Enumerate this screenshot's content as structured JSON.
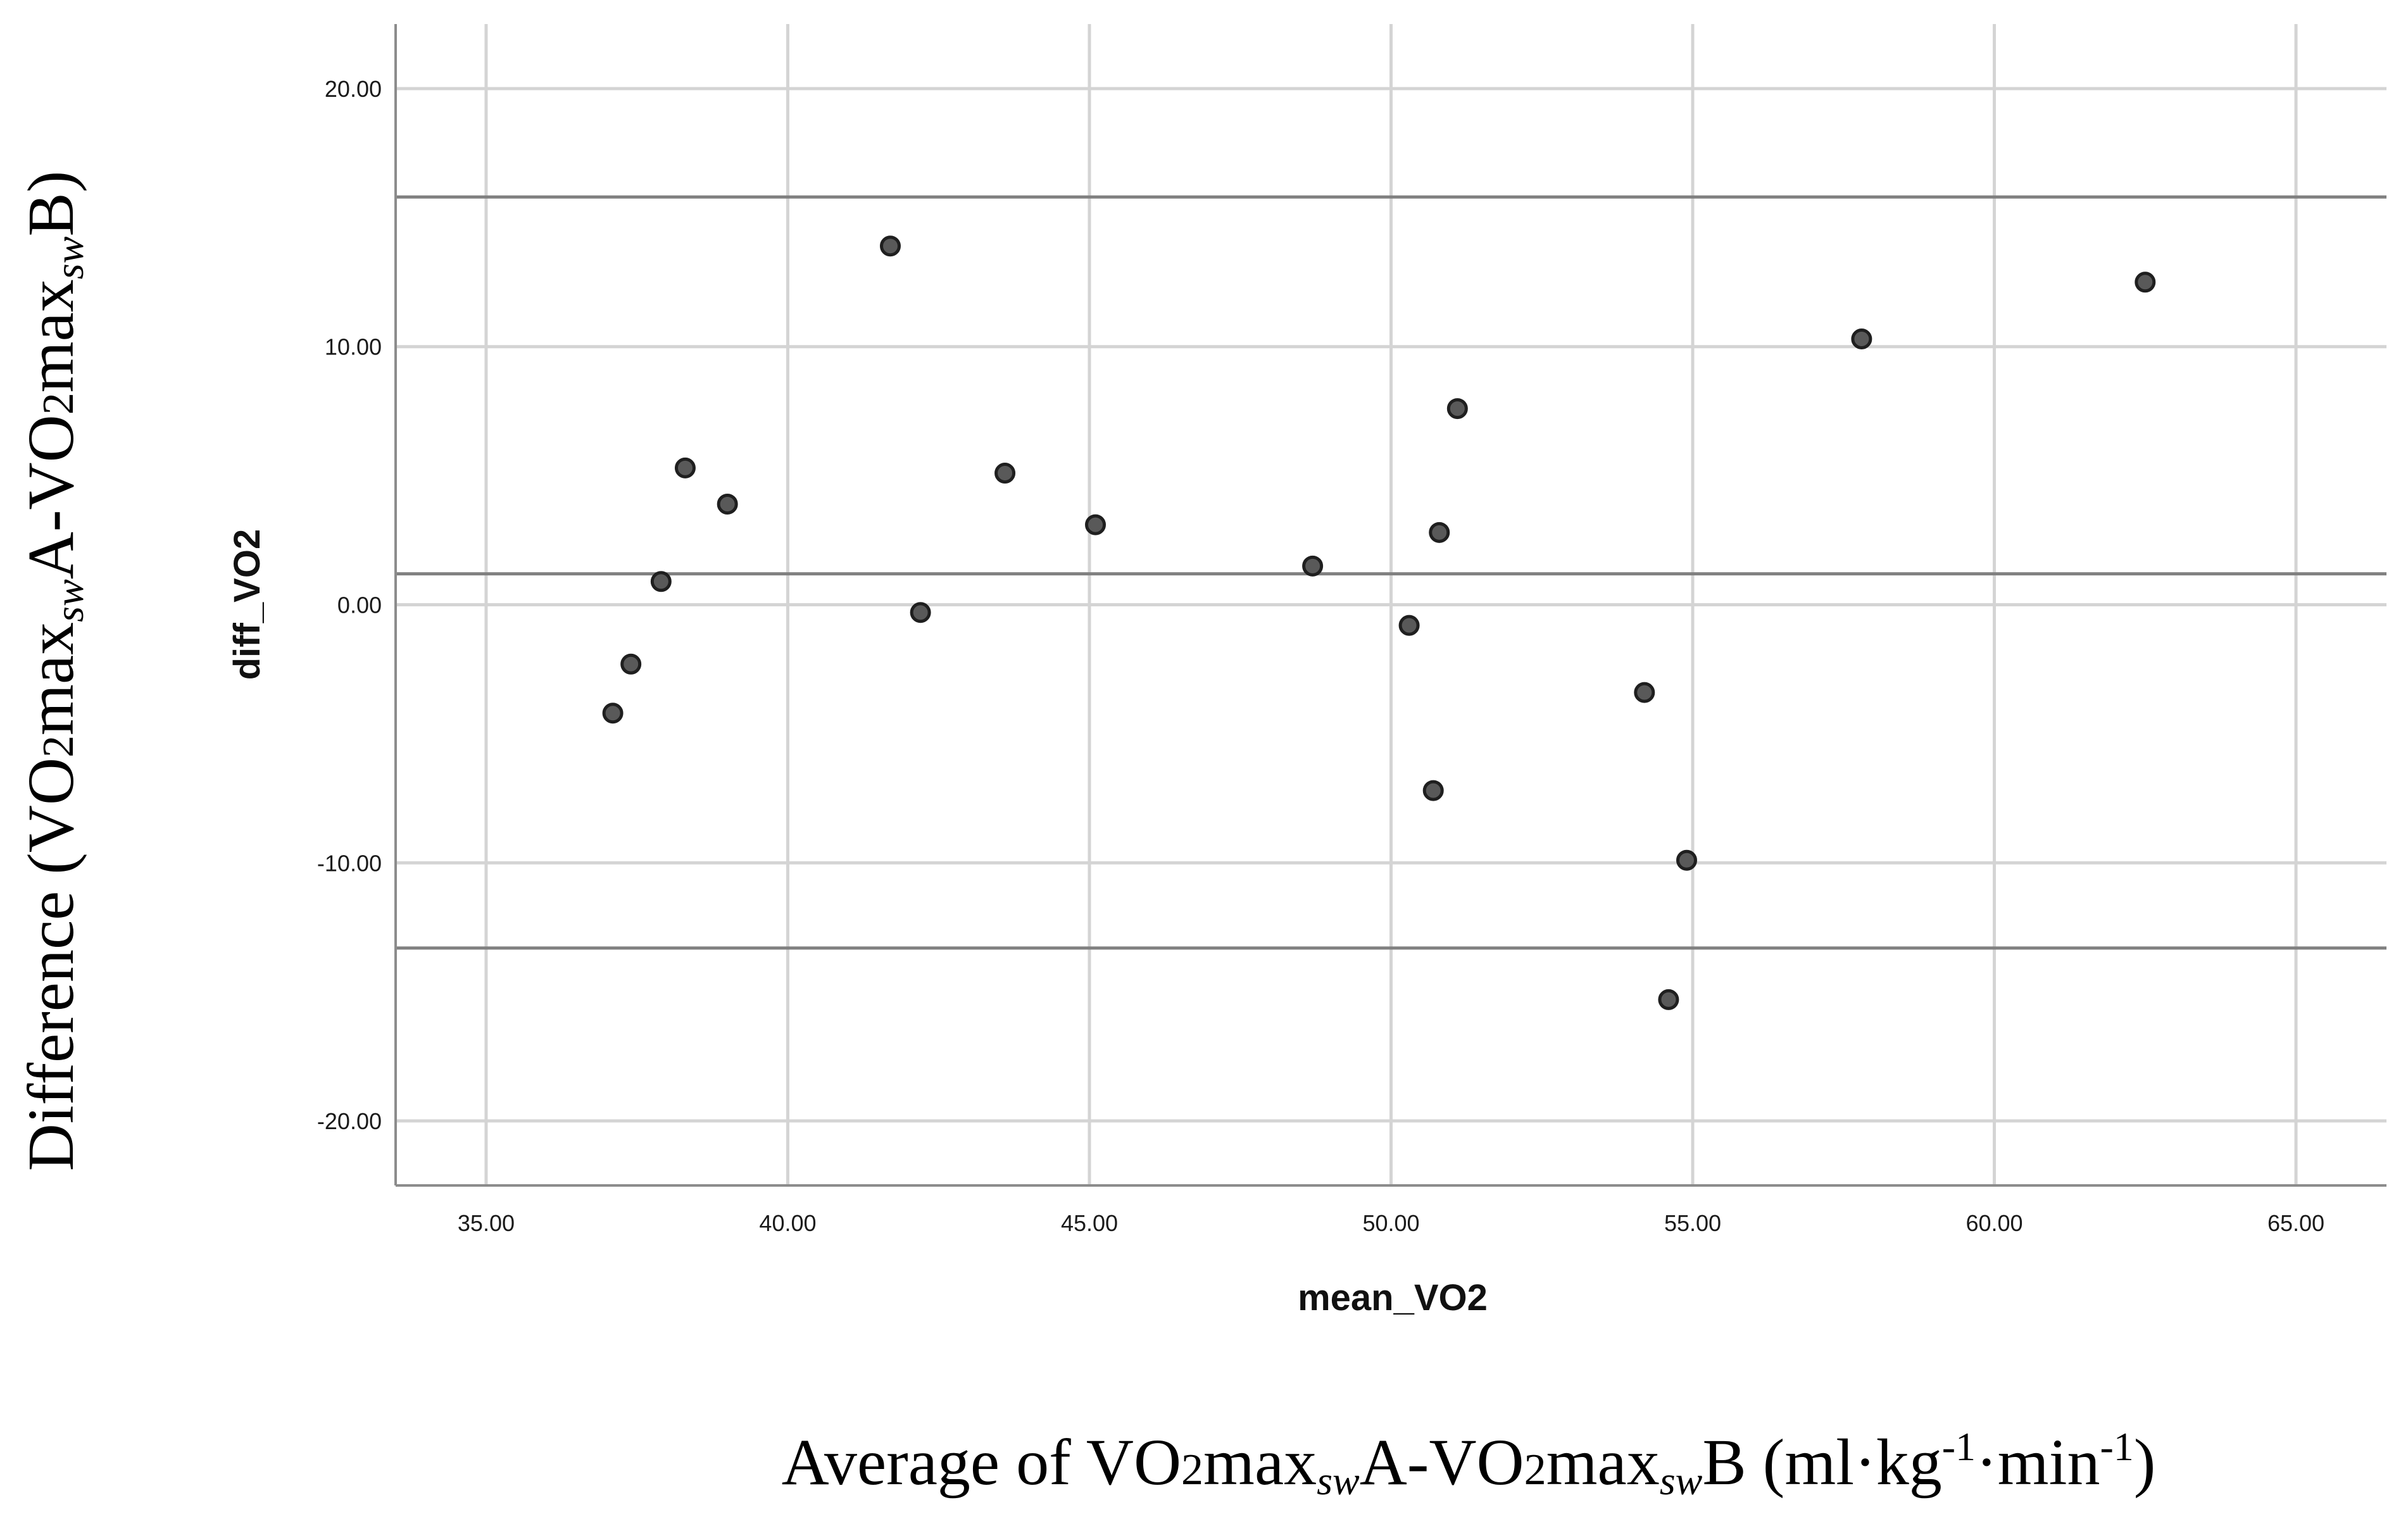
{
  "chart_data": {
    "type": "scatter",
    "xlabel": "mean_VO2",
    "ylabel": "diff_VO2",
    "xlim": [
      33.5,
      66.5
    ],
    "ylim": [
      -22.5,
      22.5
    ],
    "x_ticks": [
      "35.00",
      "40.00",
      "45.00",
      "50.00",
      "55.00",
      "60.00",
      "65.00"
    ],
    "y_ticks": [
      "20.00",
      "10.00",
      "0.00",
      "-10.00",
      "-20.00"
    ],
    "grid": true,
    "reference_lines": [
      15.8,
      1.2,
      -13.3
    ],
    "points": [
      {
        "x": 37.1,
        "y": -4.2
      },
      {
        "x": 37.4,
        "y": -2.3
      },
      {
        "x": 37.9,
        "y": 0.9
      },
      {
        "x": 38.3,
        "y": 5.3
      },
      {
        "x": 39.0,
        "y": 3.9
      },
      {
        "x": 41.7,
        "y": 13.9
      },
      {
        "x": 42.2,
        "y": -0.3
      },
      {
        "x": 43.6,
        "y": 5.1
      },
      {
        "x": 45.1,
        "y": 3.1
      },
      {
        "x": 48.7,
        "y": 1.5
      },
      {
        "x": 50.3,
        "y": -0.8
      },
      {
        "x": 50.7,
        "y": -7.2
      },
      {
        "x": 50.8,
        "y": 2.8
      },
      {
        "x": 51.1,
        "y": 7.6
      },
      {
        "x": 54.2,
        "y": -3.4
      },
      {
        "x": 54.6,
        "y": -15.3
      },
      {
        "x": 54.9,
        "y": -9.9
      },
      {
        "x": 57.8,
        "y": 10.3
      },
      {
        "x": 62.5,
        "y": 12.5
      }
    ]
  },
  "outer_labels": {
    "y_main": "Difference (VO",
    "y_sub1": "2",
    "y_mid1": "max",
    "y_sub2": "sw",
    "y_mid2": "A-VO",
    "y_sub3": "2",
    "y_mid3": "max",
    "y_sub4": "sw",
    "y_end": "B)",
    "x_main": "Average of VO",
    "x_sub1": "2",
    "x_mid1": "max",
    "x_sub2": "sw",
    "x_mid2": "A-VO",
    "x_sub3": "2",
    "x_mid3": "max",
    "x_sub4": "sw",
    "x_mid4": "B (ml·kg",
    "x_sup1": "-1",
    "x_mid5": "·min",
    "x_sup2": "-1",
    "x_end": ")"
  }
}
